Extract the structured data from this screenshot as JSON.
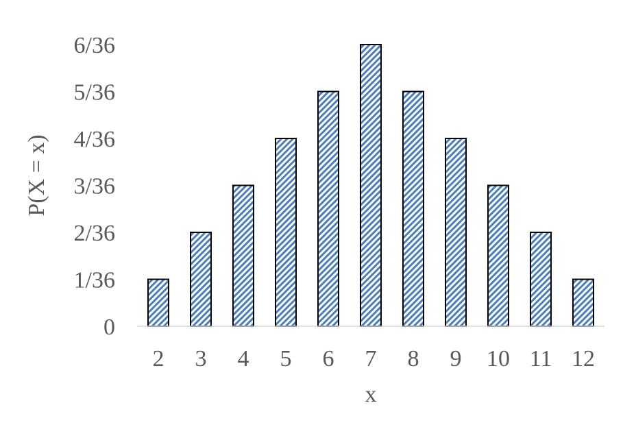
{
  "chart_data": {
    "type": "bar",
    "categories": [
      "2",
      "3",
      "4",
      "5",
      "6",
      "7",
      "8",
      "9",
      "10",
      "11",
      "12"
    ],
    "values": [
      1,
      2,
      3,
      4,
      5,
      6,
      5,
      4,
      3,
      2,
      1
    ],
    "value_unit_note": "values are numerators of x/36",
    "yticks": [
      "0",
      "1/36",
      "2/36",
      "3/36",
      "4/36",
      "5/36",
      "6/36"
    ],
    "ylim": [
      0,
      6
    ],
    "xlabel": "x",
    "ylabel": "P(X = x)",
    "grid": false,
    "legend": "none",
    "bar_fill": "diagonal-hatch",
    "hatch_color": "#4a7ebb",
    "outline_color": "#000000"
  }
}
